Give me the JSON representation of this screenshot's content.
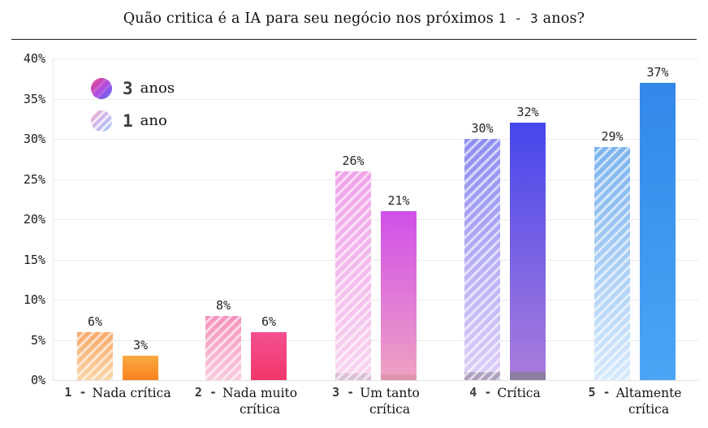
{
  "title_parts": {
    "pre": "Quão critica é a IA para seu negócio nos próximos",
    "num": "1 - 3",
    "post": "anos?"
  },
  "legend": [
    {
      "num": "3",
      "word": "anos",
      "swatch": "solid-gradient-circle"
    },
    {
      "num": "1",
      "word": "ano",
      "swatch": "hatched-gradient-circle"
    }
  ],
  "y_axis": {
    "ticks": [
      "40%",
      "35%",
      "30%",
      "25%",
      "20%",
      "15%",
      "10%",
      "5%",
      "0%"
    ]
  },
  "x_axis": {
    "labels": [
      {
        "prefix": "1 -",
        "line1": "Nada crítica"
      },
      {
        "prefix": "2 -",
        "line1": "Nada muito",
        "line2": "crítica"
      },
      {
        "prefix": "3 -",
        "line1": "Um tanto",
        "line2": "crítica"
      },
      {
        "prefix": "4 -",
        "line1": "Crítica"
      },
      {
        "prefix": "5 -",
        "line1": "Altamente",
        "line2": "crítica"
      }
    ]
  },
  "bar_labels": {
    "ano1": [
      "6%",
      "8%",
      "26%",
      "30%",
      "29%"
    ],
    "anos3": [
      "3%",
      "6%",
      "21%",
      "32%",
      "37%"
    ]
  },
  "chart_data": {
    "type": "bar",
    "title": "Quão critica é a IA para seu negócio nos próximos 1 - 3 anos?",
    "categories": [
      "1 - Nada crítica",
      "2 - Nada muito crítica",
      "3 - Um tanto crítica",
      "4 - Crítica",
      "5 - Altamente crítica"
    ],
    "series": [
      {
        "name": "1 ano",
        "style": "hatched",
        "values": [
          6,
          8,
          26,
          30,
          29
        ]
      },
      {
        "name": "3 anos",
        "style": "solid-gradient",
        "values": [
          3,
          6,
          21,
          32,
          37
        ]
      }
    ],
    "unit": "%",
    "xlabel": "",
    "ylabel": "",
    "ylim": [
      0,
      40
    ],
    "ytick_step": 5,
    "grid": true,
    "legend_position": "top-left",
    "bar_order_note": "hatched '1 ano' bar drawn left of solid '3 anos' bar in each pair"
  },
  "palette": {
    "grid": "#ebebeb",
    "axis": "#e7e7e7",
    "divider": "#222222",
    "text": "#141414",
    "number_text": "#3a3a3a",
    "bars": [
      {
        "hatch": [
          "#f8a96b",
          "#fbd5a5"
        ],
        "solid": [
          "#faaa41",
          "#f8821e"
        ]
      },
      {
        "hatch": [
          "#f592bd",
          "#facadf"
        ],
        "solid": [
          "#f54f90",
          "#f0376b"
        ]
      },
      {
        "hatch": [
          "#f0a2e9",
          "#f8d4f0",
          "#d9c0d5"
        ],
        "solid": [
          "#d050e8",
          "#ee9fc4",
          "#de93ae"
        ]
      },
      {
        "hatch": [
          "#8d8df2",
          "#dcccf8",
          "#aca0bc"
        ],
        "solid": [
          "#4546ec",
          "#a77bdc",
          "#8c7ea2"
        ]
      },
      {
        "hatch": [
          "#7cb3ee",
          "#d7e9fc"
        ],
        "solid": [
          "#3287e9",
          "#4aa5f5"
        ]
      }
    ],
    "legend": {
      "anos3": [
        "#e73f76",
        "#b44bde",
        "#4f66f0"
      ],
      "ano1": [
        "#f5afc4",
        "#c9b7f2",
        "#9fc4f7"
      ]
    }
  }
}
